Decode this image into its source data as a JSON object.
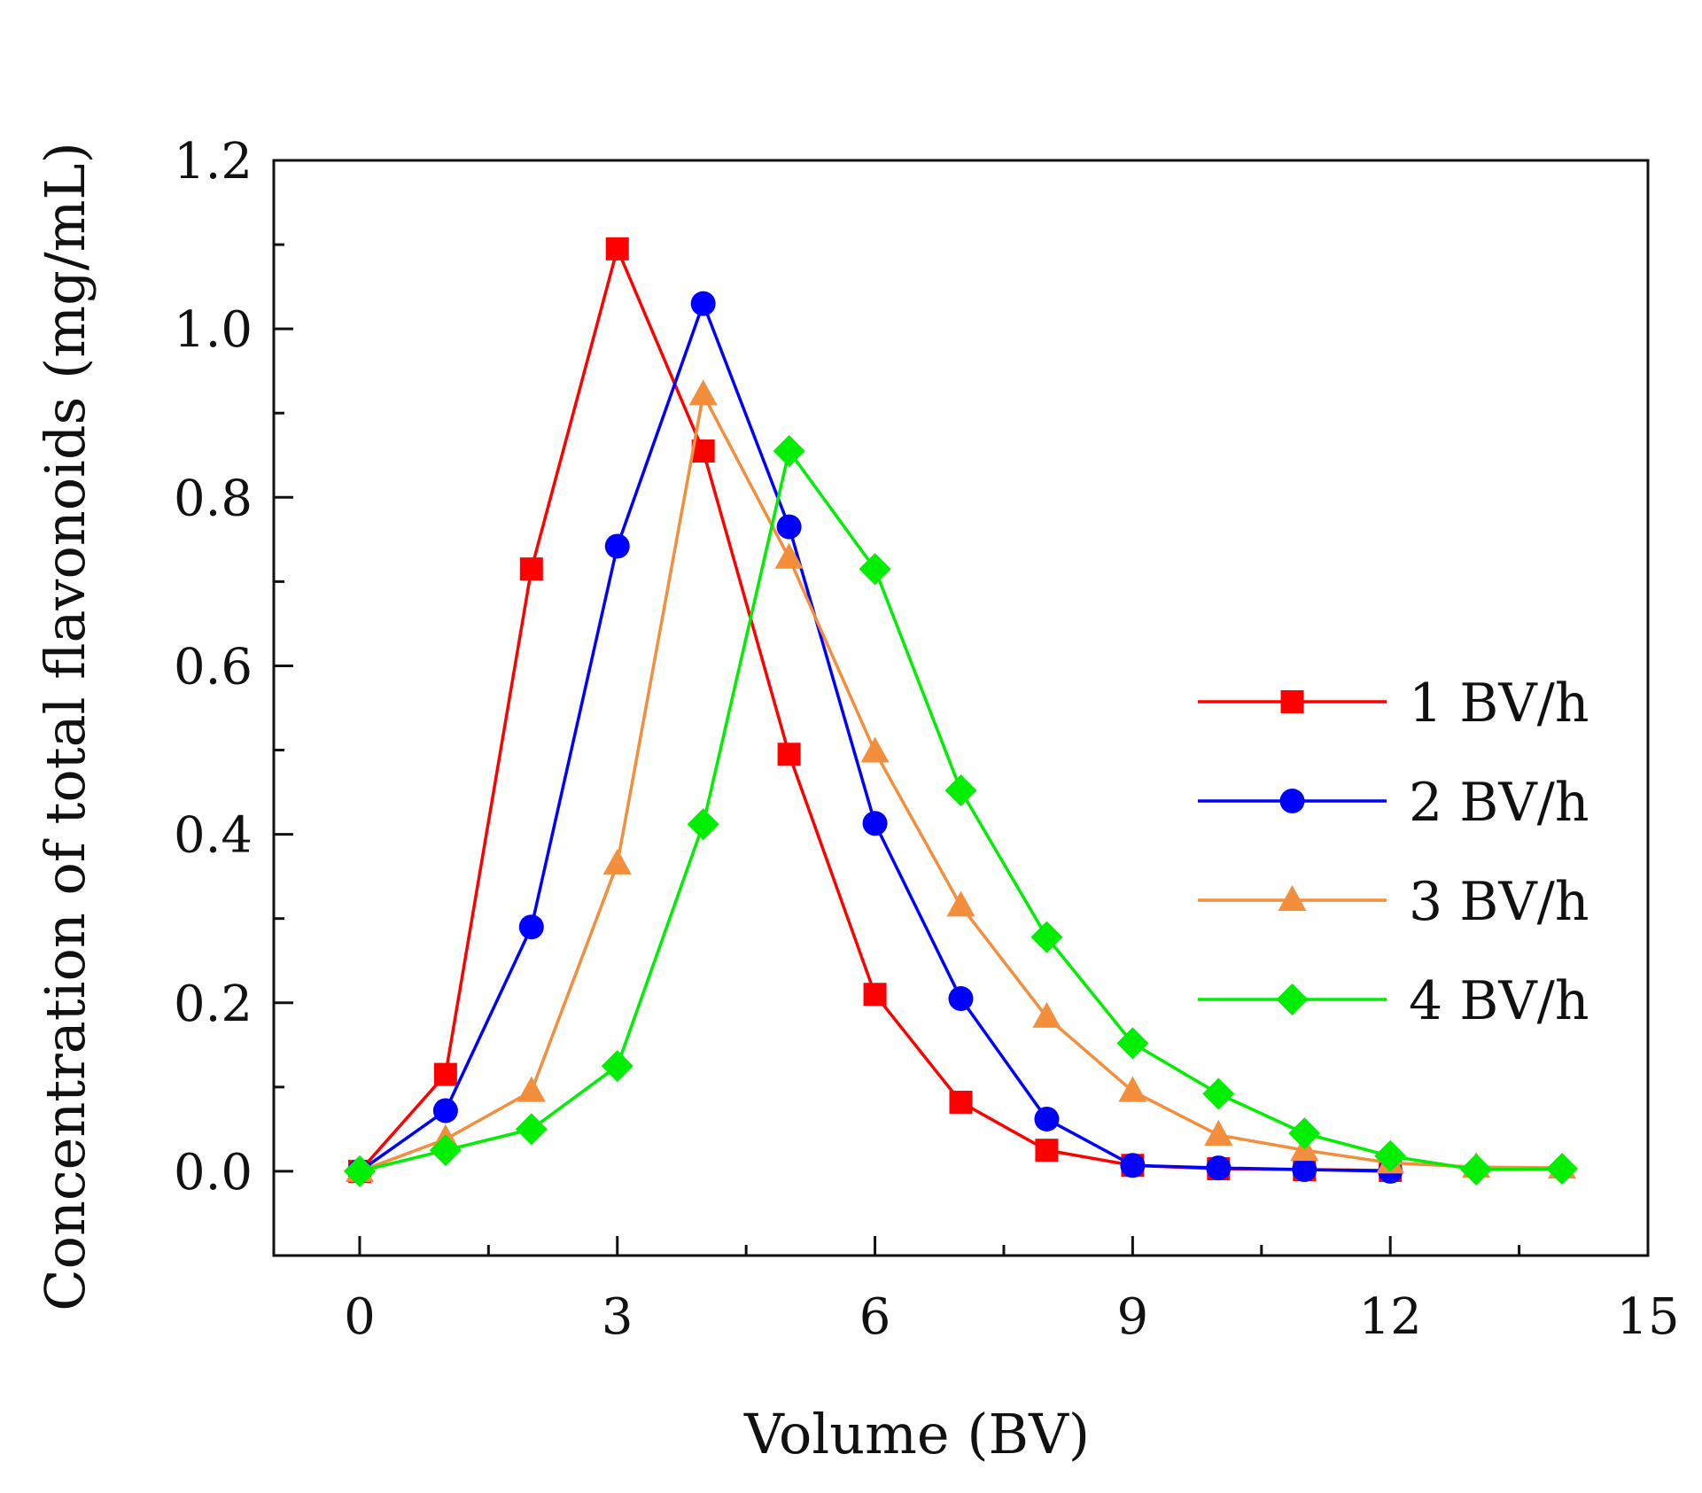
{
  "chart_data": {
    "type": "line",
    "title": "",
    "xlabel": "Volume (BV)",
    "ylabel": "Concentration of total flavonoids (mg/mL)",
    "xlim": [
      -1,
      15
    ],
    "ylim": [
      -0.1,
      1.2
    ],
    "x_ticks": [
      "0",
      "3",
      "6",
      "9",
      "12",
      "15"
    ],
    "y_ticks": [
      "0.0",
      "0.2",
      "0.4",
      "0.6",
      "0.8",
      "1.0",
      "1.2"
    ],
    "grid": false,
    "legend_position": "right",
    "series": [
      {
        "name": "1 BV/h",
        "color": "#ff0000",
        "marker": "square",
        "x": [
          0,
          1,
          2,
          3,
          4,
          5,
          6,
          7,
          8,
          9,
          10,
          11,
          12
        ],
        "y": [
          0.0,
          0.115,
          0.715,
          1.095,
          0.855,
          0.495,
          0.21,
          0.082,
          0.025,
          0.007,
          0.003,
          0.002,
          0.001
        ]
      },
      {
        "name": "2 BV/h",
        "color": "#0000ff",
        "marker": "circle",
        "x": [
          0,
          1,
          2,
          3,
          4,
          5,
          6,
          7,
          8,
          9,
          10,
          11,
          12
        ],
        "y": [
          0.0,
          0.072,
          0.29,
          0.742,
          1.03,
          0.765,
          0.413,
          0.205,
          0.062,
          0.007,
          0.004,
          0.002,
          0.0
        ]
      },
      {
        "name": "3 BV/h",
        "color": "#f28e3c",
        "marker": "triangle",
        "x": [
          0,
          1,
          2,
          3,
          4,
          5,
          6,
          7,
          8,
          9,
          10,
          11,
          12,
          13,
          14
        ],
        "y": [
          0.0,
          0.038,
          0.095,
          0.365,
          0.922,
          0.728,
          0.498,
          0.315,
          0.183,
          0.095,
          0.043,
          0.025,
          0.01,
          0.005,
          0.004
        ]
      },
      {
        "name": "4 BV/h",
        "color": "#00ee00",
        "marker": "diamond",
        "x": [
          0,
          1,
          2,
          3,
          4,
          5,
          6,
          7,
          8,
          9,
          10,
          11,
          12,
          13,
          14
        ],
        "y": [
          0.0,
          0.025,
          0.05,
          0.125,
          0.412,
          0.855,
          0.715,
          0.452,
          0.278,
          0.152,
          0.092,
          0.045,
          0.018,
          0.002,
          0.003
        ]
      }
    ]
  }
}
